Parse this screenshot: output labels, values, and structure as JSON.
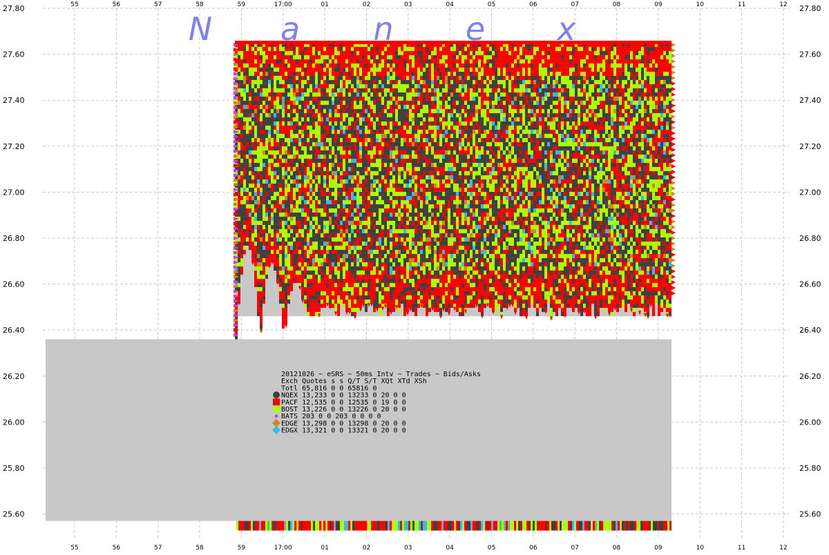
{
  "watermark": {
    "letters": [
      "N",
      "a",
      "n",
      "e",
      "x"
    ],
    "color": "#8080f0"
  },
  "chart_data": {
    "type": "scatter",
    "x_ticks": [
      "55",
      "56",
      "57",
      "58",
      "59",
      "17:00",
      "01",
      "02",
      "03",
      "04",
      "05",
      "06",
      "07",
      "08",
      "09",
      "10",
      "11",
      "12"
    ],
    "y_ticks": [
      "27.80",
      "27.60",
      "27.40",
      "27.20",
      "27.00",
      "26.80",
      "26.60",
      "26.40",
      "26.20",
      "26.00",
      "25.80",
      "25.60"
    ],
    "ylim": [
      25.55,
      27.8
    ],
    "grid": true,
    "legend_position": "center",
    "price_band": {
      "ask_top": 27.65,
      "bid_floor_early": 26.37,
      "bid_floor_late": 26.46
    },
    "gray_box_top": 26.36,
    "gray_box_bottom": 25.57,
    "bottom_trade_strip": 25.54,
    "legend": {
      "header_line1": "20121026 ~ eSRS ~ 50ms Intv ~ Trades ~ Bids/Asks",
      "header_line2": "Exch Quotes s s  Q/T   S/T  XQt XTd XSh",
      "total_row": "Totl 65,816 0 0 65816     0",
      "rows": [
        {
          "label": "NQEX 13,233 0 0 13233     0  20   0   0",
          "color": "#404040",
          "marker": "circle"
        },
        {
          "label": "PACF 12,535 0 0 12535     0  19   0   0",
          "color": "#ff0000",
          "marker": "square"
        },
        {
          "label": "BOST 13,226 0 0 13226     0  20   0   0",
          "color": "#aaff00",
          "marker": "square"
        },
        {
          "label": "BATS    203 0 0   203     0   0   0   0",
          "color": "#cc44cc",
          "marker": "diamond-small"
        },
        {
          "label": "EDGE 13,298 0 0 13298     0  20   0   0",
          "color": "#cc8822",
          "marker": "diamond"
        },
        {
          "label": "EDGX 13,321 0 0 13321     0  20   0   0",
          "color": "#33bbee",
          "marker": "diamond"
        }
      ]
    },
    "series": [
      {
        "name": "NQEX",
        "color": "#404040"
      },
      {
        "name": "PACF",
        "color": "#ff0000"
      },
      {
        "name": "BOST",
        "color": "#aaff00"
      },
      {
        "name": "BATS",
        "color": "#cc44cc"
      },
      {
        "name": "EDGE",
        "color": "#cc8822"
      },
      {
        "name": "EDGX",
        "color": "#33bbee"
      }
    ]
  }
}
